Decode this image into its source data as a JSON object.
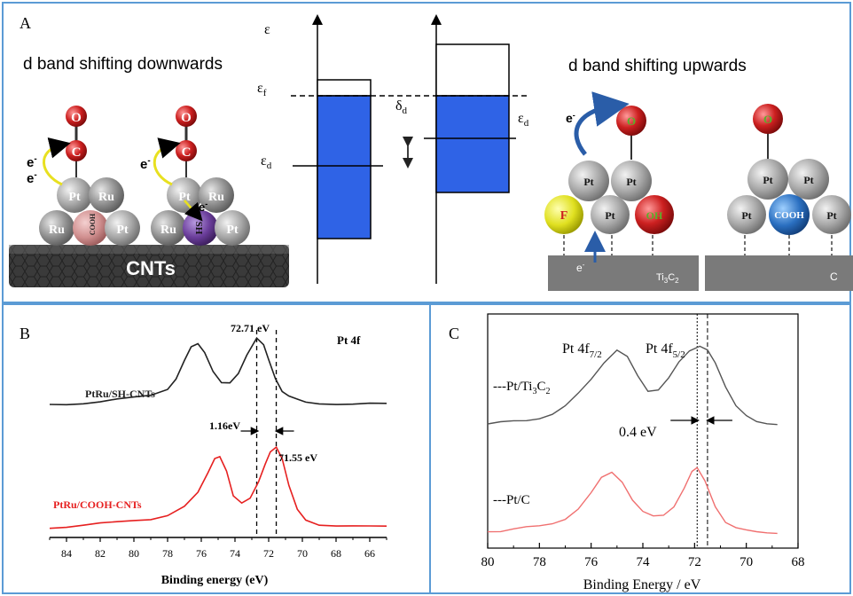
{
  "panel_a": {
    "letter": "A",
    "left_title": "d band shifting downwards",
    "right_title": "d band shifting upwards",
    "cnt_label": "CNTs",
    "eps": "ε",
    "eps_f": "ε",
    "eps_f_sub": "f",
    "eps_d_left": "ε",
    "eps_d_left_sub": "d",
    "eps_d_right": "ε",
    "eps_d_right_sub": "d",
    "delta_d": "δ",
    "delta_d_sub": "d",
    "pt": "Pt",
    "ru": "Ru",
    "cooh": "COOH",
    "sh": "SH",
    "o": "O",
    "c": "C",
    "electron": "e",
    "electron_sup": "-",
    "f": "F",
    "oh": "OH",
    "ti3c2": "Ti",
    "ti3c2_sub3": "3",
    "ti3c2_c": "C",
    "ti3c2_sub2": "2",
    "c_support": "C",
    "colors": {
      "band_fill": "#2f63e6",
      "pt_atom": "#a8a8a8",
      "o_atom": "#cc2222",
      "ru_atom": "#9a9a9a",
      "cooh_pink": "#d89a9a",
      "sh_purple": "#6a3d9a",
      "f_atom": "#e8e830",
      "cooh_blue": "#2a6fc0"
    }
  },
  "panel_b": {
    "letter": "B",
    "title": "Pt 4f",
    "annot_peak": "72.71 eV",
    "annot_shift": "1.16eV",
    "annot_peak2": "71.55 eV",
    "xlabel": "Binding energy  (eV)",
    "ticks": [
      "84",
      "82",
      "80",
      "78",
      "76",
      "74",
      "72",
      "70",
      "68",
      "66"
    ]
  },
  "panel_c": {
    "letter": "C",
    "peak1": "Pt 4f",
    "peak1_sub": "7/2",
    "peak2": "Pt 4f",
    "peak2_sub": "5/2",
    "annot_shift": "0.4 eV",
    "xlabel": "Binding Energy / eV",
    "ticks": [
      "80",
      "78",
      "76",
      "74",
      "72",
      "70",
      "68"
    ]
  },
  "chart_data": [
    {
      "type": "line",
      "panel": "B",
      "title": "Pt 4f",
      "xlabel": "Binding energy  (eV)",
      "ylabel": "",
      "xlim": [
        85,
        65
      ],
      "x_reversed": true,
      "grid": false,
      "series": [
        {
          "name": "PtRu/SH-CNTs",
          "color": "#222222",
          "x": [
            85,
            84,
            83,
            82,
            81,
            80,
            79,
            78,
            77.5,
            77,
            76.6,
            76.2,
            75.8,
            75.3,
            74.8,
            74.3,
            73.8,
            73.3,
            72.71,
            72.3,
            72,
            71.6,
            71.2,
            70.8,
            70.3,
            69.8,
            69,
            68,
            67,
            66,
            65
          ],
          "y": [
            0.08,
            0.09,
            0.1,
            0.11,
            0.13,
            0.15,
            0.18,
            0.26,
            0.38,
            0.58,
            0.72,
            0.75,
            0.66,
            0.46,
            0.34,
            0.33,
            0.42,
            0.62,
            0.82,
            0.76,
            0.6,
            0.38,
            0.22,
            0.16,
            0.13,
            0.11,
            0.1,
            0.09,
            0.08,
            0.08,
            0.08
          ]
        },
        {
          "name": "PtRu/COOH-CNTs",
          "color": "#e62020",
          "x": [
            85,
            84,
            83,
            82,
            81,
            80,
            79,
            78,
            77,
            76.2,
            75.6,
            75.2,
            74.9,
            74.5,
            74.1,
            73.6,
            73.1,
            72.6,
            72.2,
            71.9,
            71.55,
            71.2,
            70.8,
            70.3,
            69.8,
            69,
            68,
            67,
            66,
            65
          ],
          "y": [
            0.08,
            0.09,
            0.1,
            0.11,
            0.12,
            0.14,
            0.16,
            0.2,
            0.28,
            0.4,
            0.58,
            0.72,
            0.75,
            0.62,
            0.38,
            0.3,
            0.34,
            0.5,
            0.68,
            0.8,
            0.84,
            0.72,
            0.46,
            0.24,
            0.15,
            0.11,
            0.1,
            0.09,
            0.08,
            0.08
          ]
        }
      ],
      "annotations": [
        "72.71 eV",
        "1.16eV",
        "71.55 eV"
      ],
      "reference_lines_x": [
        72.71,
        71.55
      ]
    },
    {
      "type": "line",
      "panel": "C",
      "xlabel": "Binding Energy / eV",
      "ylabel": "",
      "xlim": [
        80,
        68
      ],
      "x_reversed": true,
      "grid": false,
      "series": [
        {
          "name": "---Pt/Ti3C2",
          "color": "#555555",
          "x": [
            80,
            79.5,
            79,
            78.5,
            78,
            77.5,
            77,
            76.5,
            76,
            75.5,
            75,
            74.6,
            74.2,
            73.8,
            73.4,
            73,
            72.6,
            72.2,
            71.8,
            71.5,
            71.2,
            70.8,
            70.4,
            70,
            69.6,
            69.2,
            68.8
          ],
          "y": [
            0.2,
            0.21,
            0.22,
            0.23,
            0.25,
            0.28,
            0.34,
            0.44,
            0.56,
            0.7,
            0.8,
            0.74,
            0.58,
            0.46,
            0.48,
            0.58,
            0.7,
            0.78,
            0.82,
            0.8,
            0.7,
            0.5,
            0.34,
            0.26,
            0.22,
            0.21,
            0.2
          ]
        },
        {
          "name": "---Pt/C",
          "color": "#f07070",
          "x": [
            80,
            79.5,
            79,
            78.5,
            78,
            77.5,
            77,
            76.5,
            76,
            75.6,
            75.2,
            74.8,
            74.4,
            74,
            73.6,
            73.2,
            72.8,
            72.4,
            72.1,
            71.9,
            71.6,
            71.2,
            70.8,
            70.4,
            70,
            69.6,
            69.2,
            68.8
          ],
          "y": [
            0.1,
            0.1,
            0.11,
            0.12,
            0.13,
            0.15,
            0.18,
            0.24,
            0.34,
            0.44,
            0.48,
            0.42,
            0.3,
            0.22,
            0.19,
            0.2,
            0.26,
            0.38,
            0.48,
            0.5,
            0.42,
            0.26,
            0.16,
            0.12,
            0.1,
            0.09,
            0.09,
            0.09
          ]
        }
      ],
      "annotations": [
        "Pt 4f7/2",
        "Pt 4f5/2",
        "0.4 eV"
      ],
      "reference_lines_x": [
        71.9,
        71.5
      ]
    }
  ]
}
